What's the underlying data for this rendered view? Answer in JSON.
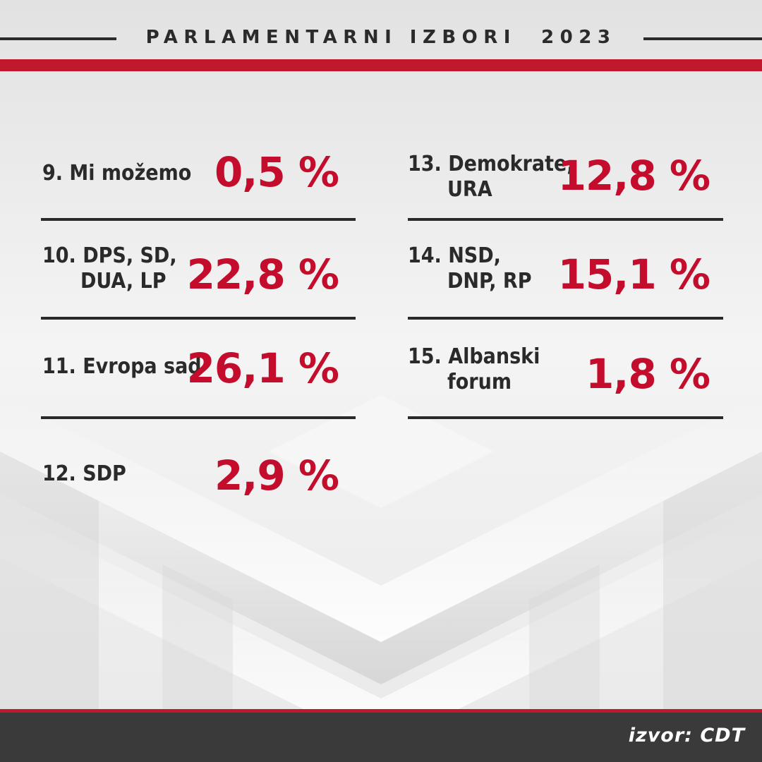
{
  "header": {
    "title": "PARLAMENTARNI IZBORI  2023"
  },
  "left_column": [
    {
      "label": "9. Mi možemo",
      "label_line2": "",
      "value": "0,5 %"
    },
    {
      "label": "10. DPS, SD,",
      "label_line2": "DUA, LP",
      "value": "22,8 %"
    },
    {
      "label": "11. Evropa sad",
      "label_line2": "",
      "value": "26,1 %"
    },
    {
      "label": "12. SDP",
      "label_line2": "",
      "value": "2,9 %"
    }
  ],
  "right_column": [
    {
      "label": "13. Demokrate,",
      "label_line2": "URA",
      "value": "12,8 %"
    },
    {
      "label": "14. NSD,",
      "label_line2": "DNP, RP",
      "value": "15,1 %"
    },
    {
      "label": "15. Albanski",
      "label_line2": "forum",
      "value": "1,8 %"
    }
  ],
  "footer": {
    "source": "izvor: CDT"
  },
  "colors": {
    "accent_red": "#c0182c",
    "value_red": "#c40d2c",
    "text_dark": "#2a2a2a",
    "footer_bg": "#3a3a3a"
  }
}
